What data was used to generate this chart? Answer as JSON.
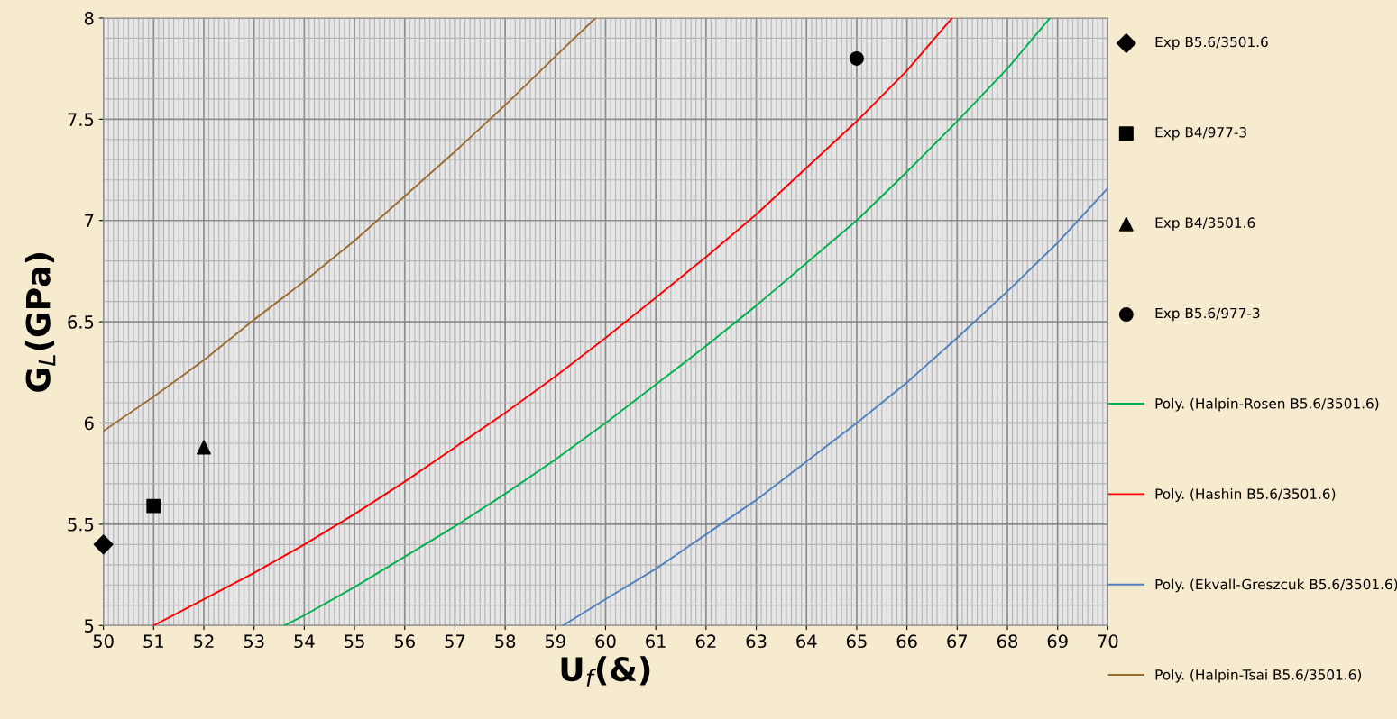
{
  "chart_data": {
    "type": "scatter",
    "xlabel": "U$_{f}$(&)",
    "ylabel": "G$_{L}$(GPa)",
    "xlim": [
      50,
      70
    ],
    "xticks": [
      50,
      51,
      52,
      53,
      54,
      55,
      56,
      57,
      58,
      59,
      60,
      61,
      62,
      63,
      64,
      65,
      66,
      67,
      68,
      69,
      70
    ],
    "ylim": [
      5,
      8
    ],
    "yticks": [
      5,
      5.5,
      6,
      6.5,
      7,
      7.5,
      8
    ],
    "grid": true,
    "legend": "right",
    "series": [
      {
        "name": "Exp B5.6/3501.6",
        "marker": "diamond",
        "color": "#000000",
        "x": [
          50
        ],
        "values": [
          5.4
        ]
      },
      {
        "name": "Exp B4/977-3",
        "marker": "square",
        "color": "#000000",
        "x": [
          51
        ],
        "values": [
          5.59
        ]
      },
      {
        "name": "Exp B4/3501.6",
        "marker": "triangle",
        "color": "#000000",
        "x": [
          52
        ],
        "values": [
          5.88
        ]
      },
      {
        "name": "Exp B5.6/977-3",
        "marker": "circle",
        "color": "#000000",
        "x": [
          65
        ],
        "values": [
          7.8
        ]
      },
      {
        "name": "Poly. (Halpin-Rosen B5.6/3501.6)",
        "type": "line",
        "marker": "none",
        "color": "#00b050",
        "x": [
          53.6,
          54,
          55,
          56,
          57,
          58,
          59,
          60,
          61,
          62,
          63,
          64,
          65,
          66,
          67,
          68,
          68.85
        ],
        "values": [
          5.0,
          5.05,
          5.19,
          5.34,
          5.49,
          5.65,
          5.82,
          6.0,
          6.19,
          6.38,
          6.58,
          6.79,
          7.0,
          7.24,
          7.49,
          7.75,
          8.0
        ]
      },
      {
        "name": "Poly. (Hashin B5.6/3501.6)",
        "type": "line",
        "marker": "none",
        "color": "#ff0000",
        "x": [
          51,
          52,
          53,
          54,
          55,
          56,
          57,
          58,
          59,
          60,
          61,
          62,
          63,
          64,
          65,
          66,
          66.9
        ],
        "values": [
          5.0,
          5.13,
          5.26,
          5.4,
          5.55,
          5.71,
          5.88,
          6.05,
          6.23,
          6.42,
          6.62,
          6.82,
          7.03,
          7.26,
          7.49,
          7.74,
          8.0
        ]
      },
      {
        "name": "Poly. (Ekvall-Greszcuk B5.6/3501.6)",
        "type": "line",
        "marker": "none",
        "color": "#4f81bd",
        "x": [
          59.15,
          60,
          61,
          62,
          63,
          64,
          65,
          66,
          67,
          68,
          69,
          70
        ],
        "values": [
          5.0,
          5.13,
          5.28,
          5.45,
          5.62,
          5.81,
          6.0,
          6.2,
          6.42,
          6.65,
          6.89,
          7.16
        ]
      },
      {
        "name": "Poly. (Halpin-Tsai B5.6/3501.6)",
        "type": "line",
        "marker": "none",
        "color": "#9c6b30",
        "x": [
          50,
          51,
          52,
          53,
          54,
          55,
          56,
          57,
          58,
          59,
          59.8
        ],
        "values": [
          5.96,
          6.13,
          6.31,
          6.51,
          6.7,
          6.9,
          7.12,
          7.34,
          7.57,
          7.81,
          8.0
        ]
      }
    ]
  }
}
